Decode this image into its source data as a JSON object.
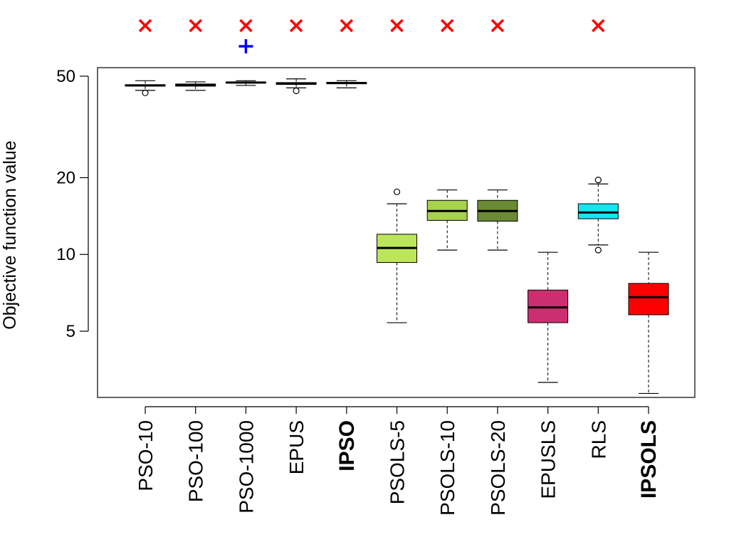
{
  "chart_data": {
    "type": "box",
    "ylabel": "Objective function value",
    "xlabel": "",
    "yscale": "log",
    "ylim": [
      2.75,
      54
    ],
    "yticks": [
      5,
      10,
      20,
      50
    ],
    "yticklabels": [
      "5",
      "10",
      "20",
      "50"
    ],
    "categories": [
      "PSO-10",
      "PSO-100",
      "PSO-1000",
      "EPUS",
      "IPSO",
      "PSOLS-5",
      "PSOLS-10",
      "PSOLS-20",
      "EPUSLS",
      "RLS",
      "IPSOLS"
    ],
    "bold_categories": [
      "IPSO",
      "IPSOLS"
    ],
    "boxes": [
      {
        "name": "PSO-10",
        "color": "#ffffff",
        "whislo": 44.0,
        "q1": 45.7,
        "med": 46.0,
        "q3": 46.3,
        "whishi": 48.0,
        "outliers": [
          43.0
        ]
      },
      {
        "name": "PSO-100",
        "color": "#ffffff",
        "whislo": 44.0,
        "q1": 45.7,
        "med": 46.1,
        "q3": 46.6,
        "whishi": 47.5,
        "outliers": []
      },
      {
        "name": "PSO-1000",
        "color": "#ffffff",
        "whislo": 46.0,
        "q1": 47.0,
        "med": 47.2,
        "q3": 47.4,
        "whishi": 48.0,
        "outliers": []
      },
      {
        "name": "EPUS",
        "color": "#ffffff",
        "whislo": 45.0,
        "q1": 46.4,
        "med": 46.8,
        "q3": 47.2,
        "whishi": 48.8,
        "outliers": [
          43.8
        ]
      },
      {
        "name": "IPSO",
        "color": "#ffffff",
        "whislo": 45.0,
        "q1": 46.7,
        "med": 47.0,
        "q3": 47.3,
        "whishi": 48.0,
        "outliers": []
      },
      {
        "name": "PSOLS-5",
        "color": "#bde55c",
        "whislo": 5.4,
        "q1": 9.3,
        "med": 10.6,
        "q3": 12.0,
        "whishi": 15.8,
        "outliers": [
          17.6
        ]
      },
      {
        "name": "PSOLS-10",
        "color": "#a8d14f",
        "whislo": 10.4,
        "q1": 13.6,
        "med": 14.8,
        "q3": 16.3,
        "whishi": 17.9,
        "outliers": []
      },
      {
        "name": "PSOLS-20",
        "color": "#6b8a35",
        "whislo": 10.4,
        "q1": 13.5,
        "med": 14.8,
        "q3": 16.3,
        "whishi": 17.9,
        "outliers": []
      },
      {
        "name": "EPUSLS",
        "color": "#cc2f6f",
        "whislo": 3.15,
        "q1": 5.4,
        "med": 6.2,
        "q3": 7.25,
        "whishi": 10.2,
        "outliers": []
      },
      {
        "name": "RLS",
        "color": "#12e6f0",
        "whislo": 10.9,
        "q1": 13.8,
        "med": 14.6,
        "q3": 15.8,
        "whishi": 18.9,
        "outliers": [
          10.4,
          19.6
        ]
      },
      {
        "name": "IPSOLS",
        "color": "#ff0000",
        "whislo": 2.85,
        "q1": 5.8,
        "med": 6.8,
        "q3": 7.7,
        "whishi": 10.2,
        "outliers": []
      }
    ],
    "significance_markers": [
      {
        "category": "PSO-10",
        "symbol": "×"
      },
      {
        "category": "PSO-100",
        "symbol": "×"
      },
      {
        "category": "PSO-1000",
        "symbol": "×"
      },
      {
        "category": "PSO-1000",
        "symbol": "+"
      },
      {
        "category": "EPUS",
        "symbol": "×"
      },
      {
        "category": "IPSO",
        "symbol": "×"
      },
      {
        "category": "PSOLS-5",
        "symbol": "×"
      },
      {
        "category": "PSOLS-10",
        "symbol": "×"
      },
      {
        "category": "PSOLS-20",
        "symbol": "×"
      },
      {
        "category": "RLS",
        "symbol": "×"
      }
    ],
    "colors": {
      "cross": "#ff0000",
      "plus": "#0000ff",
      "axis": "#000000"
    }
  }
}
